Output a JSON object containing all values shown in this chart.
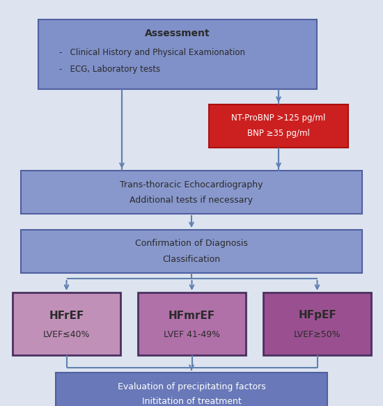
{
  "bg_color": "#dde4ef",
  "box_colors": {
    "assessment": "#8090c8",
    "bnp": "#cc2020",
    "echo": "#8898cc",
    "confirmation": "#8898cc",
    "hfref": "#c090b8",
    "hfmref": "#b070a8",
    "hfpef": "#9a5090",
    "treatment": "#6878b8"
  },
  "arrow_color": "#6080b0",
  "text_color_dark": "#2a2a2a",
  "text_color_white": "#ffffff",
  "border_color_blue": "#5060a0",
  "border_color_purple": "#4a3060",
  "assessment_title": "Assessment",
  "assessment_line1": "-   Clinical History and Physical Examionation",
  "assessment_line2": "-   ECG, Laboratory tests",
  "bnp_line1": "NT-ProBNP >125 pg/ml",
  "bnp_line2": "BNP ≥35 pg/ml",
  "echo_line1": "Trans-thoracic Echocardiography",
  "echo_line2": "Additional tests if necessary",
  "conf_line1": "Confirmation of Diagnosis",
  "conf_line2": "Classification",
  "hfref_title": "HFrEF",
  "hfref_sub": "LVEF≤40%",
  "hfmref_title": "HFmrEF",
  "hfmref_sub": "LVEF 41-49%",
  "hfpef_title": "HFpEF",
  "hfpef_sub": "LVEF≥50%",
  "treat_line1": "Evaluation of precipitating factors",
  "treat_line2": "Inititation of treatment"
}
